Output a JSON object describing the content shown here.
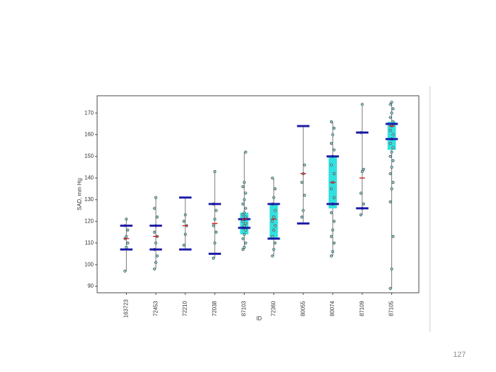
{
  "chart_data": {
    "type": "box",
    "y_label": "SAD, mm Hg",
    "x_label": "ID",
    "categories": [
      "163723",
      "72453",
      "72210",
      "72038",
      "87103",
      "72360",
      "80055",
      "80074",
      "87109",
      "87105"
    ],
    "groups": [
      {
        "caps": [
          107,
          118
        ],
        "box": null,
        "median": 112,
        "range": [
          97,
          121
        ],
        "points": [
          97,
          108,
          110,
          112,
          113,
          116,
          118,
          121
        ]
      },
      {
        "caps": [
          107,
          118
        ],
        "box": null,
        "median": 113,
        "range": [
          98,
          131
        ],
        "points": [
          98,
          101,
          104,
          107,
          110,
          113,
          115,
          118,
          122,
          126,
          131
        ]
      },
      {
        "caps": [
          107,
          131
        ],
        "box": null,
        "median": 118,
        "range": [
          107,
          131
        ],
        "points": [
          109,
          114,
          118,
          120,
          123
        ]
      },
      {
        "caps": [
          105,
          128
        ],
        "box": null,
        "median": 119,
        "range": [
          103,
          143
        ],
        "points": [
          103,
          110,
          115,
          118,
          121,
          125,
          128,
          143
        ]
      },
      {
        "caps": [
          117,
          121
        ],
        "box": [
          114,
          124
        ],
        "median": 121,
        "range": [
          107,
          152
        ],
        "points": [
          107,
          108,
          110,
          112,
          114,
          116,
          117,
          118,
          119,
          120,
          121,
          122,
          123,
          124,
          126,
          128,
          130,
          133,
          136,
          138,
          152
        ]
      },
      {
        "caps": [
          112,
          128
        ],
        "box": [
          112,
          128
        ],
        "median": 121,
        "range": [
          104,
          140
        ],
        "points": [
          104,
          107,
          110,
          113,
          116,
          118,
          120,
          122,
          125,
          128,
          131,
          135,
          140
        ]
      },
      {
        "caps": [
          119,
          164
        ],
        "box": null,
        "median": 142,
        "range": [
          119,
          164
        ],
        "points": [
          122,
          125,
          132,
          138,
          142,
          146
        ]
      },
      {
        "caps": [
          128,
          150
        ],
        "box": [
          126,
          150
        ],
        "median": 138,
        "range": [
          104,
          166
        ],
        "points": [
          104,
          106,
          110,
          113,
          116,
          120,
          124,
          128,
          131,
          135,
          138,
          142,
          146,
          150,
          153,
          156,
          160,
          163,
          166
        ]
      },
      {
        "caps": [
          126,
          161
        ],
        "box": null,
        "median": 140,
        "range": [
          123,
          174
        ],
        "points": [
          123,
          126,
          128,
          133,
          143,
          144,
          161,
          174
        ]
      },
      {
        "caps": [
          158,
          165
        ],
        "box": [
          153,
          166
        ],
        "median": 164,
        "range": [
          89,
          175
        ],
        "points": [
          89,
          98,
          113,
          129,
          135,
          138,
          142,
          145,
          148,
          150,
          152,
          154,
          156,
          158,
          160,
          162,
          164,
          166,
          168,
          170,
          172,
          174,
          175
        ]
      }
    ],
    "ylim": [
      87,
      178
    ],
    "yticks": [
      90,
      100,
      110,
      120,
      130,
      140,
      150,
      160,
      170
    ],
    "cap_color": "#1a1aa8",
    "box_color": "#33e0e0",
    "median_color": "#d02020",
    "point_color": "#7fcfd0"
  },
  "page_number": "127"
}
